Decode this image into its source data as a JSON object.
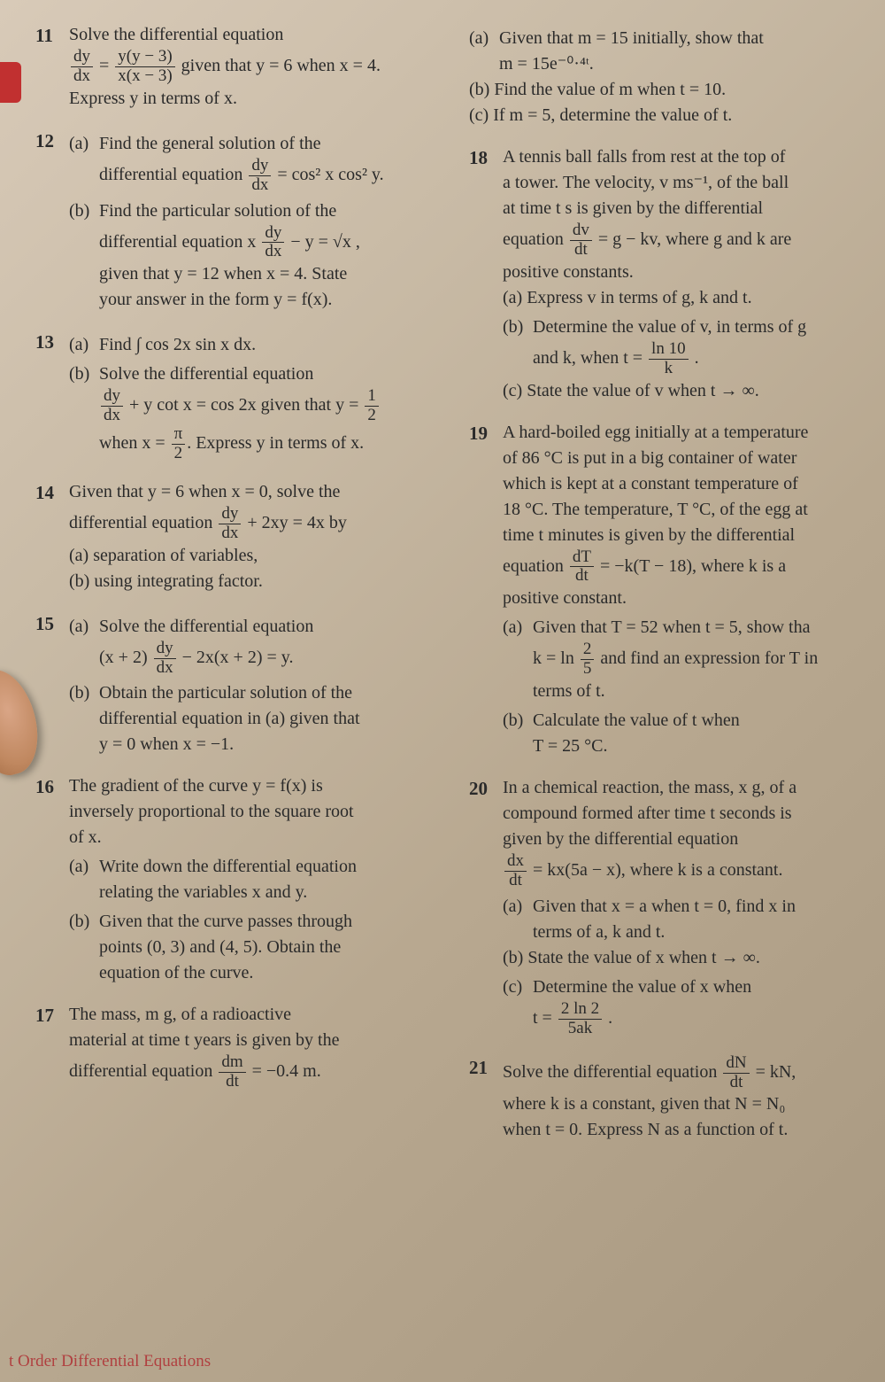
{
  "footer": "t Order Differential Equations",
  "left": {
    "p11": {
      "num": "11",
      "l1": "Solve the differential equation",
      "frac_l": {
        "n": "dy",
        "d": "dx"
      },
      "eq_mid": "=",
      "frac_r": {
        "n": "y(y − 3)",
        "d": "x(x − 3)"
      },
      "l2_tail": " given that y = 6 when x = 4.",
      "l3": "Express y in terms of x."
    },
    "p12": {
      "num": "12",
      "a1": "(a)",
      "a_l1": "Find the general solution of the",
      "a_l2_pre": "differential equation ",
      "a_frac": {
        "n": "dy",
        "d": "dx"
      },
      "a_l2_post": " = cos² x cos² y.",
      "b1": "(b)",
      "b_l1": "Find the particular solution of the",
      "b_l2_pre": "differential equation x ",
      "b_frac": {
        "n": "dy",
        "d": "dx"
      },
      "b_l2_post": " − y = √x ,",
      "b_l3": "given that y = 12 when x = 4. State",
      "b_l4": "your answer in the form y = f(x)."
    },
    "p13": {
      "num": "13",
      "a1": "(a)",
      "a_text": "Find ∫ cos 2x sin x dx.",
      "b1": "(b)",
      "b_l1": "Solve the differential equation",
      "b_frac1": {
        "n": "dy",
        "d": "dx"
      },
      "b_mid": " + y cot x = cos 2x given that y = ",
      "b_frac2": {
        "n": "1",
        "d": "2"
      },
      "b_l3_pre": "when x = ",
      "b_frac3": {
        "n": "π",
        "d": "2"
      },
      "b_l3_post": ". Express y in terms of x."
    },
    "p14": {
      "num": "14",
      "l1": "Given that y = 6 when x = 0, solve the",
      "l2_pre": "differential equation ",
      "frac": {
        "n": "dy",
        "d": "dx"
      },
      "l2_post": " + 2xy = 4x by",
      "a": "(a)  separation of variables,",
      "b": "(b)  using integrating factor."
    },
    "p15": {
      "num": "15",
      "a1": "(a)",
      "a_l1": "Solve the differential equation",
      "a_l2_pre": "(x + 2) ",
      "a_frac": {
        "n": "dy",
        "d": "dx"
      },
      "a_l2_post": " − 2x(x + 2) = y.",
      "b1": "(b)",
      "b_l1": "Obtain the particular solution of the",
      "b_l2": "differential equation in (a) given that",
      "b_l3": "y = 0 when x = −1."
    },
    "p16": {
      "num": "16",
      "l1": "The gradient of the curve y = f(x) is",
      "l2": "inversely proportional to the square root",
      "l3": "of x.",
      "a1": "(a)",
      "a_l1": "Write down the differential equation",
      "a_l2": "relating the variables x and y.",
      "b1": "(b)",
      "b_l1": "Given that the curve passes through",
      "b_l2": "points (0, 3) and (4, 5). Obtain the",
      "b_l3": "equation of the curve."
    },
    "p17": {
      "num": "17",
      "l1": "The mass, m g, of a radioactive",
      "l2": "material at time t years is given by the",
      "l3_pre": "differential equation ",
      "frac": {
        "n": "dm",
        "d": "dt"
      },
      "l3_post": " = −0.4 m."
    }
  },
  "right": {
    "p17r": {
      "a1": "(a)",
      "a_l1": "Given that m = 15 initially, show that",
      "a_l2": "m = 15e⁻⁰·⁴ᵗ.",
      "b": "(b)  Find the value of m when t = 10.",
      "c": "(c)  If m = 5, determine the value of t."
    },
    "p18": {
      "num": "18",
      "l1": "A tennis ball falls from rest at the top of",
      "l2": "a tower. The velocity, v ms⁻¹, of the ball",
      "l3": "at time t s is given by the differential",
      "l4_pre": "equation ",
      "frac": {
        "n": "dv",
        "d": "dt"
      },
      "l4_post": " = g − kv, where g and k are",
      "l5": "positive constants.",
      "a": "(a)  Express v in terms of g, k and t.",
      "b1": "(b)",
      "b_l1": "Determine the value of v, in terms of g",
      "b_l2_pre": "and k, when t = ",
      "b_frac": {
        "n": "ln 10",
        "d": "k"
      },
      "b_l2_post": " .",
      "c": "(c)  State the value of v when t → ∞."
    },
    "p19": {
      "num": "19",
      "l1": "A hard-boiled egg initially at a temperature",
      "l2": "of 86 °C is put in a big container of water",
      "l3": "which is kept at a constant temperature of",
      "l4": "18 °C. The temperature, T °C, of the egg at",
      "l5": "time t minutes is given by the differential",
      "l6_pre": "equation ",
      "frac": {
        "n": "dT",
        "d": "dt"
      },
      "l6_post": " = −k(T − 18), where k is a",
      "l7": "positive constant.",
      "a1": "(a)",
      "a_l1": "Given that T = 52 when t = 5, show tha",
      "a_l2_pre": "k = ln ",
      "a_frac": {
        "n": "2",
        "d": "5"
      },
      "a_l2_post": " and find an expression for T in",
      "a_l3": "terms of t.",
      "b1": "(b)",
      "b_l1": "Calculate the value of t when",
      "b_l2": "T = 25 °C."
    },
    "p20": {
      "num": "20",
      "l1": "In a chemical reaction, the mass, x g, of a",
      "l2": "compound formed after time t seconds is",
      "l3": "given by the differential equation",
      "frac": {
        "n": "dx",
        "d": "dt"
      },
      "l4_post": " = kx(5a − x), where k is a constant.",
      "a1": "(a)",
      "a_l1": "Given that x = a when t = 0, find x in",
      "a_l2": "terms of a, k and t.",
      "b": "(b)  State the value of x when t → ∞.",
      "c1": "(c)",
      "c_l1": "Determine the value of x when",
      "c_l2_pre": "t = ",
      "c_frac": {
        "n": "2 ln 2",
        "d": "5ak"
      },
      "c_l2_post": " ."
    },
    "p21": {
      "num": "21",
      "l1_pre": "Solve the differential equation ",
      "frac": {
        "n": "dN",
        "d": "dt"
      },
      "l1_post": " = kN,",
      "l2": "where k is a constant, given that N = N₀",
      "l3": "when t = 0. Express N as a function of t."
    }
  }
}
